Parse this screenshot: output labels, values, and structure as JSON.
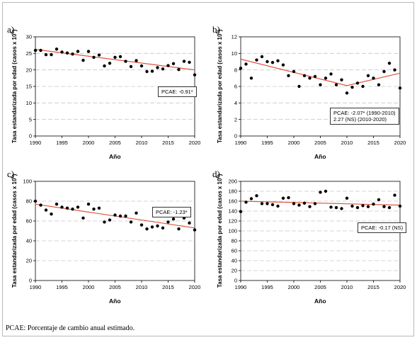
{
  "footnote": "PCAE: Porcentaje de cambio anual estimado.",
  "colors": {
    "trend": "#e0533a",
    "grid": "#c8c8c8",
    "point": "#000000"
  },
  "chart_data": [
    {
      "panel": "a)",
      "type": "scatter",
      "ylabel_prefix": "Tasa estandarizada por edad (casos x 10",
      "ylabel_exp": "5",
      "ylabel_suffix": ")",
      "xlabel": "Año",
      "xlim": [
        1990,
        2020
      ],
      "ylim": [
        0,
        30
      ],
      "xticks": [
        1990,
        1995,
        2000,
        2005,
        2010,
        2015,
        2020
      ],
      "yticks": [
        0,
        5,
        10,
        15,
        20,
        25,
        30
      ],
      "grid": true,
      "annotation": [
        "PCAE: -0.91*"
      ],
      "x": [
        1990,
        1991,
        1992,
        1993,
        1994,
        1995,
        1996,
        1997,
        1998,
        1999,
        2000,
        2001,
        2002,
        2003,
        2004,
        2005,
        2006,
        2007,
        2008,
        2009,
        2010,
        2011,
        2012,
        2013,
        2014,
        2015,
        2016,
        2017,
        2018,
        2019,
        2020
      ],
      "y": [
        25.9,
        25.9,
        24.6,
        24.6,
        26.3,
        25.4,
        25.1,
        24.8,
        25.6,
        22.9,
        25.6,
        23.8,
        24.5,
        21.2,
        22.0,
        23.8,
        24.0,
        22.6,
        21.0,
        22.8,
        21.2,
        19.5,
        19.6,
        20.7,
        20.3,
        21.3,
        21.9,
        20.1,
        22.6,
        22.3,
        18.5
      ],
      "trend": [
        {
          "x": 1990,
          "y": 26.2
        },
        {
          "x": 2020,
          "y": 20.0
        }
      ]
    },
    {
      "panel": "b)",
      "type": "scatter",
      "ylabel_prefix": "Tasa estandarizada por edad (casos x 10",
      "ylabel_exp": "5",
      "ylabel_suffix": ")",
      "xlabel": "Año",
      "xlim": [
        1990,
        2020
      ],
      "ylim": [
        0,
        12
      ],
      "xticks": [
        1990,
        1995,
        2000,
        2005,
        2010,
        2015,
        2020
      ],
      "yticks": [
        0,
        2,
        4,
        6,
        8,
        10,
        12
      ],
      "grid": true,
      "annotation": [
        "PCAE: -2.07* (1990-2010)",
        "2.27 (NS) (2010-2020)"
      ],
      "x": [
        1990,
        1991,
        1992,
        1993,
        1994,
        1995,
        1996,
        1997,
        1998,
        1999,
        2000,
        2001,
        2002,
        2003,
        2004,
        2005,
        2006,
        2007,
        2008,
        2009,
        2010,
        2011,
        2012,
        2013,
        2014,
        2015,
        2016,
        2017,
        2018,
        2019,
        2020
      ],
      "y": [
        8.2,
        8.7,
        7.0,
        9.2,
        9.6,
        9.0,
        8.9,
        9.1,
        8.6,
        7.3,
        7.8,
        6.0,
        7.3,
        7.0,
        7.2,
        6.2,
        7.0,
        7.5,
        6.2,
        6.8,
        5.2,
        5.9,
        6.4,
        6.0,
        7.3,
        7.0,
        6.2,
        7.8,
        8.8,
        8.0,
        5.8
      ],
      "trend": [
        {
          "x": 1990,
          "y": 9.3
        },
        {
          "x": 2010,
          "y": 6.1
        },
        {
          "x": 2020,
          "y": 7.6
        }
      ]
    },
    {
      "panel": "c)",
      "type": "scatter",
      "ylabel_prefix": "Tasa estandarizada por edad (casos x 10",
      "ylabel_exp": "5",
      "ylabel_suffix": ")",
      "xlabel": "Año",
      "xlim": [
        1990,
        2020
      ],
      "ylim": [
        0,
        100
      ],
      "xticks": [
        1990,
        1995,
        2000,
        2005,
        2010,
        2015,
        2020
      ],
      "yticks": [
        0,
        20,
        40,
        60,
        80,
        100
      ],
      "grid": true,
      "annotation": [
        "PCAE: -1.23*"
      ],
      "x": [
        1990,
        1991,
        1992,
        1993,
        1994,
        1995,
        1996,
        1997,
        1998,
        1999,
        2000,
        2001,
        2002,
        2003,
        2004,
        2005,
        2006,
        2007,
        2008,
        2009,
        2010,
        2011,
        2012,
        2013,
        2014,
        2015,
        2016,
        2017,
        2018,
        2019,
        2020
      ],
      "y": [
        80,
        76,
        71,
        67,
        77,
        74,
        73,
        72,
        74,
        63,
        77,
        72,
        73,
        59,
        61,
        66,
        65,
        65,
        59,
        68,
        56,
        52,
        54,
        55,
        53,
        59,
        62,
        52,
        63,
        58,
        51
      ],
      "trend": [
        {
          "x": 1990,
          "y": 77
        },
        {
          "x": 2020,
          "y": 53
        }
      ]
    },
    {
      "panel": "d)",
      "type": "scatter",
      "ylabel_prefix": "Tasa estandarizada por edad (casos x 10",
      "ylabel_exp": "6",
      "ylabel_suffix": ")",
      "xlabel": "Año",
      "xlim": [
        1990,
        2020
      ],
      "ylim": [
        0,
        200
      ],
      "xticks": [
        1990,
        1995,
        2000,
        2005,
        2010,
        2015,
        2020
      ],
      "yticks": [
        0,
        20,
        40,
        60,
        80,
        100,
        120,
        140,
        160,
        180,
        200
      ],
      "grid": true,
      "annotation": [
        "PCAE: -0.17 (NS)"
      ],
      "x": [
        1990,
        1991,
        1992,
        1993,
        1994,
        1995,
        1996,
        1997,
        1998,
        1999,
        2000,
        2001,
        2002,
        2003,
        2004,
        2005,
        2006,
        2007,
        2008,
        2009,
        2010,
        2011,
        2012,
        2013,
        2014,
        2015,
        2016,
        2017,
        2018,
        2019,
        2020
      ],
      "y": [
        139,
        158,
        165,
        171,
        155,
        155,
        153,
        150,
        166,
        167,
        155,
        152,
        156,
        149,
        155,
        178,
        180,
        148,
        147,
        145,
        166,
        150,
        147,
        151,
        149,
        154,
        163,
        149,
        147,
        172,
        150
      ],
      "trend": [
        {
          "x": 1990,
          "y": 160
        },
        {
          "x": 2020,
          "y": 152
        }
      ]
    }
  ]
}
